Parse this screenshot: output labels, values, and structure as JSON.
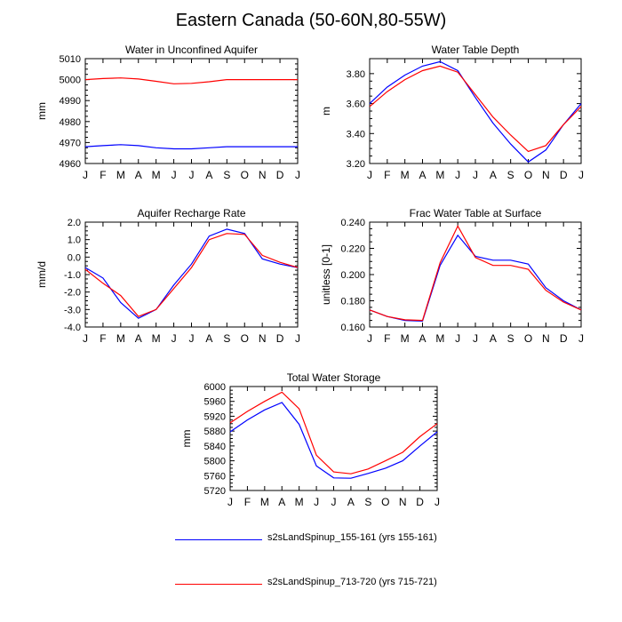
{
  "title": "Eastern Canada (50-60N,80-55W)",
  "colors": {
    "series_1": "#0000ff",
    "series_2": "#ff0000",
    "axis": "#000000"
  },
  "chart_data": [
    {
      "type": "line",
      "title": "Water in Unconfined Aquifer",
      "ylabel": "mm",
      "xlabel": "",
      "categories": [
        "J",
        "F",
        "M",
        "A",
        "M",
        "J",
        "J",
        "A",
        "S",
        "O",
        "N",
        "D",
        "J"
      ],
      "ylim": [
        4960,
        5010
      ],
      "yticks": [
        4960,
        4970,
        4980,
        4990,
        5000,
        5010
      ],
      "yticklabels": [
        "4960",
        "4970",
        "4980",
        "4990",
        "5000",
        "5010"
      ],
      "series": [
        {
          "name": "s2sLandSpinup_155-161 (yrs 155-161)",
          "color": "#0000ff",
          "values": [
            4968,
            4968.5,
            4969,
            4968.5,
            4967.5,
            4967,
            4967,
            4967.5,
            4968,
            4968,
            4968,
            4968,
            4968
          ]
        },
        {
          "name": "s2sLandSpinup_713-720 (yrs 715-721)",
          "color": "#ff0000",
          "values": [
            5000,
            5000.5,
            5000.8,
            5000.3,
            4999.2,
            4998,
            4998.2,
            4999,
            5000,
            5000,
            5000,
            5000,
            5000
          ]
        }
      ]
    },
    {
      "type": "line",
      "title": "Water Table Depth",
      "ylabel": "m",
      "xlabel": "",
      "categories": [
        "J",
        "F",
        "M",
        "A",
        "M",
        "J",
        "J",
        "A",
        "S",
        "O",
        "N",
        "D",
        "J"
      ],
      "ylim": [
        3.2,
        3.9
      ],
      "yticks": [
        3.2,
        3.4,
        3.6,
        3.8
      ],
      "yticklabels": [
        "3.20",
        "3.40",
        "3.60",
        "3.80"
      ],
      "series": [
        {
          "name": "s2sLandSpinup_155-161 (yrs 155-161)",
          "color": "#0000ff",
          "values": [
            3.6,
            3.71,
            3.79,
            3.85,
            3.88,
            3.82,
            3.64,
            3.47,
            3.33,
            3.21,
            3.29,
            3.46,
            3.6
          ]
        },
        {
          "name": "s2sLandSpinup_713-720 (yrs 715-721)",
          "color": "#ff0000",
          "values": [
            3.58,
            3.68,
            3.76,
            3.82,
            3.85,
            3.81,
            3.66,
            3.51,
            3.39,
            3.28,
            3.32,
            3.46,
            3.58
          ]
        }
      ]
    },
    {
      "type": "line",
      "title": "Aquifer Recharge Rate",
      "ylabel": "mm/d",
      "xlabel": "",
      "categories": [
        "J",
        "F",
        "M",
        "A",
        "M",
        "J",
        "J",
        "A",
        "S",
        "O",
        "N",
        "D",
        "J"
      ],
      "ylim": [
        -4,
        2
      ],
      "yticks": [
        -4,
        -3,
        -2,
        -1,
        0,
        1,
        2
      ],
      "yticklabels": [
        "-4.0",
        "-3.0",
        "-2.0",
        "-1.0",
        "0.0",
        "1.0",
        "2.0"
      ],
      "series": [
        {
          "name": "s2sLandSpinup_155-161 (yrs 155-161)",
          "color": "#0000ff",
          "values": [
            -0.6,
            -1.2,
            -2.6,
            -3.5,
            -3.0,
            -1.6,
            -0.4,
            1.2,
            1.6,
            1.35,
            -0.1,
            -0.4,
            -0.6
          ]
        },
        {
          "name": "s2sLandSpinup_713-720 (yrs 715-721)",
          "color": "#ff0000",
          "values": [
            -0.7,
            -1.5,
            -2.2,
            -3.4,
            -3.0,
            -1.8,
            -0.6,
            1.0,
            1.35,
            1.3,
            0.1,
            -0.3,
            -0.6
          ]
        }
      ]
    },
    {
      "type": "line",
      "title": "Frac Water Table at Surface",
      "ylabel": "unitless [0-1]",
      "xlabel": "",
      "categories": [
        "J",
        "F",
        "M",
        "A",
        "M",
        "J",
        "J",
        "A",
        "S",
        "O",
        "N",
        "D",
        "J"
      ],
      "ylim": [
        0.16,
        0.24
      ],
      "yticks": [
        0.16,
        0.18,
        0.2,
        0.22,
        0.24
      ],
      "yticklabels": [
        "0.160",
        "0.180",
        "0.200",
        "0.220",
        "0.240"
      ],
      "series": [
        {
          "name": "s2sLandSpinup_155-161 (yrs 155-161)",
          "color": "#0000ff",
          "values": [
            0.173,
            0.168,
            0.165,
            0.1645,
            0.207,
            0.23,
            0.214,
            0.211,
            0.211,
            0.208,
            0.19,
            0.18,
            0.173
          ]
        },
        {
          "name": "s2sLandSpinup_713-720 (yrs 715-721)",
          "color": "#ff0000",
          "values": [
            0.173,
            0.168,
            0.1655,
            0.165,
            0.209,
            0.237,
            0.213,
            0.207,
            0.207,
            0.204,
            0.188,
            0.179,
            0.173
          ]
        }
      ]
    },
    {
      "type": "line",
      "title": "Total Water Storage",
      "ylabel": "mm",
      "xlabel": "",
      "categories": [
        "J",
        "F",
        "M",
        "A",
        "M",
        "J",
        "J",
        "A",
        "S",
        "O",
        "N",
        "D",
        "J"
      ],
      "ylim": [
        5720,
        6000
      ],
      "yticks": [
        5720,
        5760,
        5800,
        5840,
        5880,
        5920,
        5960,
        6000
      ],
      "yticklabels": [
        "5720",
        "5760",
        "5800",
        "5840",
        "5880",
        "5920",
        "5960",
        "6000"
      ],
      "series": [
        {
          "name": "s2sLandSpinup_155-161 (yrs 155-161)",
          "color": "#0000ff",
          "values": [
            5878,
            5910,
            5937,
            5957,
            5898,
            5786,
            5754,
            5753,
            5766,
            5780,
            5800,
            5840,
            5878
          ]
        },
        {
          "name": "s2sLandSpinup_713-720 (yrs 715-721)",
          "color": "#ff0000",
          "values": [
            5902,
            5933,
            5960,
            5985,
            5940,
            5815,
            5770,
            5765,
            5778,
            5800,
            5823,
            5865,
            5900
          ]
        }
      ]
    }
  ],
  "legend": [
    {
      "label": "s2sLandSpinup_155-161 (yrs 155-161)",
      "color": "#0000ff"
    },
    {
      "label": "s2sLandSpinup_713-720 (yrs 715-721)",
      "color": "#ff0000"
    }
  ]
}
